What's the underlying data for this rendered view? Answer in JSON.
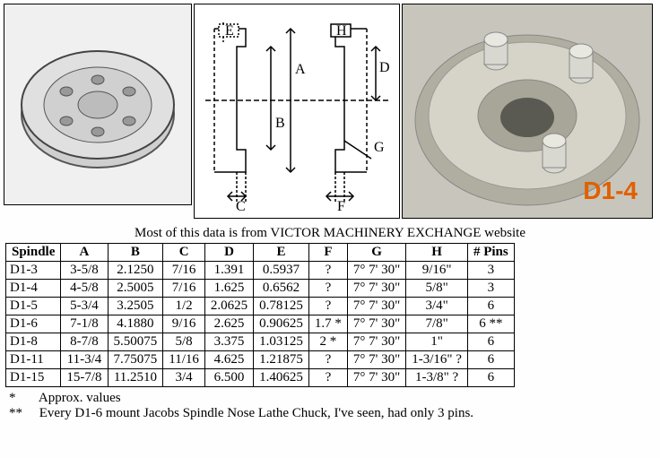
{
  "caption": "Most of this data is from VICTOR MACHINERY EXCHANGE website",
  "label_d14": "D1-4",
  "diagram_labels": {
    "A": "A",
    "B": "B",
    "C": "C",
    "D": "D",
    "E": "E",
    "F": "F",
    "G": "G",
    "H": "H"
  },
  "table": {
    "headers": [
      "Spindle",
      "A",
      "B",
      "C",
      "D",
      "E",
      "F",
      "G",
      "H",
      "# Pins"
    ],
    "rows": [
      [
        "D1-3",
        "3-5/8",
        "2.1250",
        "7/16",
        "1.391",
        "0.5937",
        "?",
        "7° 7' 30\"",
        "9/16\"",
        "3"
      ],
      [
        "D1-4",
        "4-5/8",
        "2.5005",
        "7/16",
        "1.625",
        "0.6562",
        "?",
        "7° 7' 30\"",
        "5/8\"",
        "3"
      ],
      [
        "D1-5",
        "5-3/4",
        "3.2505",
        "1/2",
        "2.0625",
        "0.78125",
        "?",
        "7° 7' 30\"",
        "3/4\"",
        "6"
      ],
      [
        "D1-6",
        "7-1/8",
        "4.1880",
        "9/16",
        "2.625",
        "0.90625",
        "1.7 *",
        "7° 7' 30\"",
        "7/8\"",
        "6 **"
      ],
      [
        "D1-8",
        "8-7/8",
        "5.50075",
        "5/8",
        "3.375",
        "1.03125",
        "2 *",
        "7° 7' 30\"",
        "1\"",
        "6"
      ],
      [
        "D1-11",
        "11-3/4",
        "7.75075",
        "11/16",
        "4.625",
        "1.21875",
        "?",
        "7° 7' 30\"",
        "1-3/16\" ?",
        "6"
      ],
      [
        "D1-15",
        "15-7/8",
        "11.2510",
        "3/4",
        "6.500",
        "1.40625",
        "?",
        "7° 7' 30\"",
        "1-3/8\" ?",
        "6"
      ]
    ]
  },
  "footnotes": [
    {
      "sym": "*",
      "text": "Approx. values"
    },
    {
      "sym": "**",
      "text": "Every D1-6 mount Jacobs Spindle Nose Lathe Chuck, I've seen, had only 3 pins."
    }
  ],
  "colors": {
    "border": "#000000",
    "accent": "#e06000",
    "img3_bg": "#c8c6bc"
  }
}
